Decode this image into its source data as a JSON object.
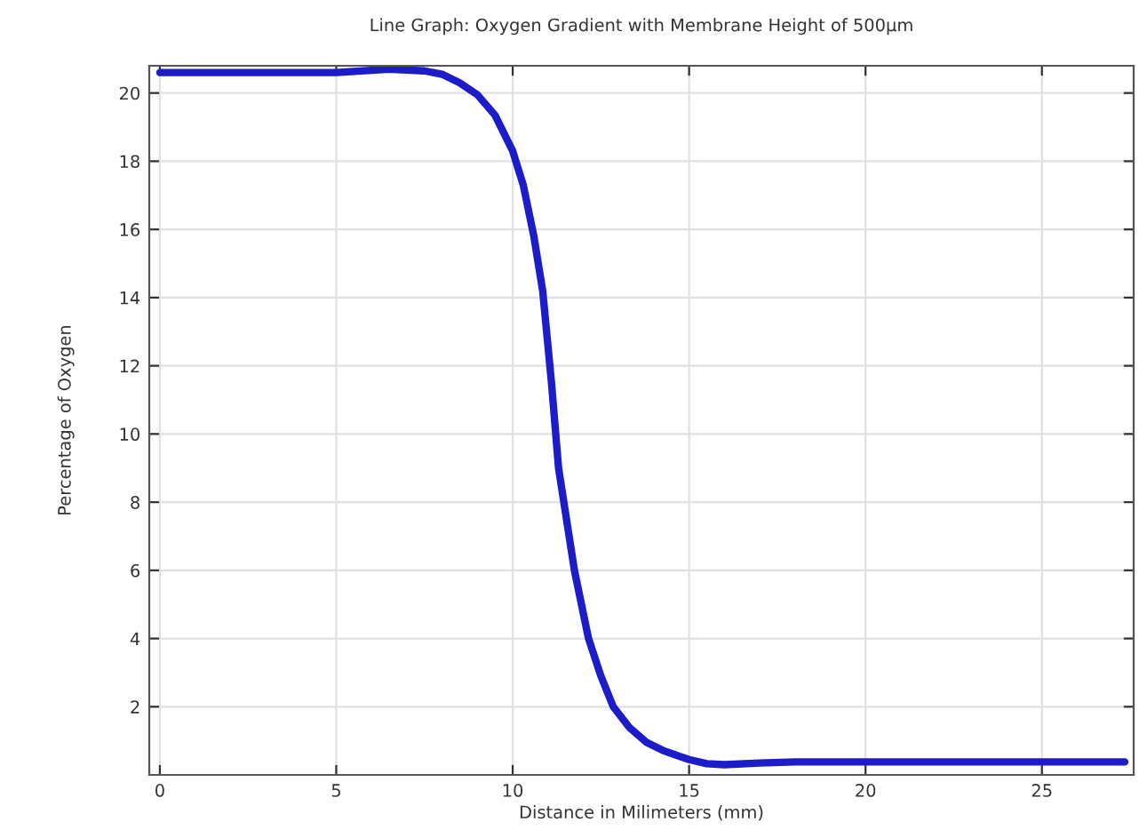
{
  "chart_data": {
    "type": "line",
    "title": "Line Graph: Oxygen Gradient with Membrane Height of 500µm",
    "xlabel": "Distance in Milimeters (mm)",
    "ylabel": "Percentage of Oxygen",
    "xlim": [
      -0.3,
      27.6
    ],
    "ylim": [
      0,
      20.8
    ],
    "xticks": [
      0,
      5,
      10,
      15,
      20,
      25
    ],
    "yticks": [
      2,
      4,
      6,
      8,
      10,
      12,
      14,
      16,
      18,
      20
    ],
    "grid": true,
    "line_style": "solid",
    "marker": "none",
    "series": [
      {
        "color": "#1c1cc8",
        "x": [
          0,
          3,
          5,
          6.5,
          7.5,
          8,
          8.5,
          9,
          9.5,
          10,
          10.3,
          10.6,
          10.85,
          11.1,
          11.3,
          11.45,
          11.75,
          12.15,
          12.5,
          12.85,
          13.3,
          13.8,
          14.3,
          15,
          15.5,
          16,
          17,
          18,
          20,
          25,
          27.35
        ],
        "values": [
          20.6,
          20.6,
          20.6,
          20.7,
          20.65,
          20.55,
          20.3,
          19.95,
          19.35,
          18.3,
          17.3,
          15.8,
          14.2,
          11.5,
          9.0,
          8,
          6,
          4,
          2.9,
          2.0,
          1.4,
          0.95,
          0.7,
          0.45,
          0.33,
          0.3,
          0.35,
          0.38,
          0.38,
          0.38,
          0.38
        ]
      }
    ]
  }
}
